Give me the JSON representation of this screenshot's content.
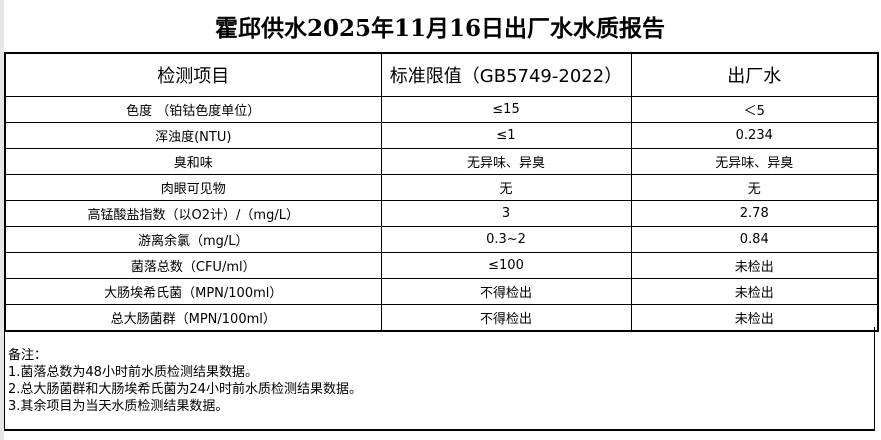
{
  "title": "霍邱供水2025年11月16日出厂水水质报告",
  "headers": [
    "检测项目",
    "标准限值（GB5749-2022）",
    "出厂水"
  ],
  "rows": [
    {
      "item": "色度 （铂钴色度单位）",
      "limit": "≤15",
      "value": "＜5"
    },
    {
      "item": "浑浊度(NTU)",
      "limit": "≤1",
      "value": "0.234"
    },
    {
      "item": "臭和味",
      "limit": "无异味、异臭",
      "value": "无异味、异臭"
    },
    {
      "item": "肉眼可见物",
      "limit": "无",
      "value": "无"
    },
    {
      "item": "高锰酸盐指数（以O2计）/（mg/L）",
      "limit": "3",
      "value": "2.78"
    },
    {
      "item": "游离余氯（mg/L）",
      "limit": "0.3~2",
      "value": "0.84"
    },
    {
      "item": "菌落总数（CFU/ml）",
      "limit": "≤100",
      "value": "未检出"
    },
    {
      "item": "大肠埃希氏菌（MPN/100ml）",
      "limit": "不得检出",
      "value": "未检出"
    },
    {
      "item": "总大肠菌群（MPN/100ml）",
      "limit": "不得检出",
      "value": "未检出"
    }
  ],
  "notes": [
    "备注：",
    "1.菌落总数为48小时前水质检测结果数据。",
    "2.总大肠菌群和大肠埃希氏菌为24小时前水质检测结果数据。",
    "3.其余项目为当天水质检测结果数据。"
  ]
}
